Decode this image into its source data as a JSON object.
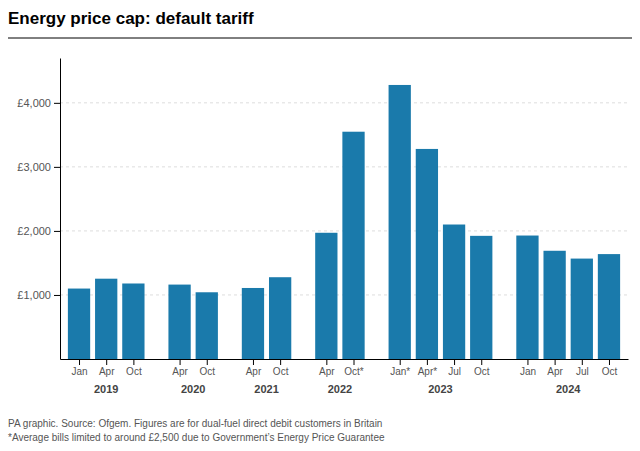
{
  "chart_data": {
    "type": "bar",
    "title": "Energy price cap: default tariff",
    "categories": [
      "Jan",
      "Apr",
      "Oct",
      "Apr",
      "Oct",
      "Apr",
      "Oct",
      "Apr",
      "Oct*",
      "Jan*",
      "Apr*",
      "Jul",
      "Oct",
      "Jan",
      "Apr",
      "Jul",
      "Oct"
    ],
    "values": [
      1100,
      1254,
      1179,
      1162,
      1042,
      1109,
      1277,
      1971,
      3549,
      4279,
      3280,
      2100,
      1923,
      1928,
      1690,
      1568,
      1638
    ],
    "groups": [
      {
        "name": "2019",
        "count": 3
      },
      {
        "name": "2020",
        "count": 2
      },
      {
        "name": "2021",
        "count": 2
      },
      {
        "name": "2022",
        "count": 2
      },
      {
        "name": "2023",
        "count": 4
      },
      {
        "name": "2024",
        "count": 4
      }
    ],
    "color": "#1a7aab",
    "ylim": [
      0,
      4700
    ],
    "yticks": [
      {
        "value": 1000,
        "label": "£1,000"
      },
      {
        "value": 2000,
        "label": "£2,000"
      },
      {
        "value": 3000,
        "label": "£3,000"
      },
      {
        "value": 4000,
        "label": "£4,000"
      }
    ],
    "grid": true,
    "annotations": [
      "PA graphic. Source: Ofgem. Figures are for dual-fuel direct debit customers in Britain",
      "*Average bills limited to around £2,500 due to Government’s Energy Price Guarantee"
    ]
  }
}
